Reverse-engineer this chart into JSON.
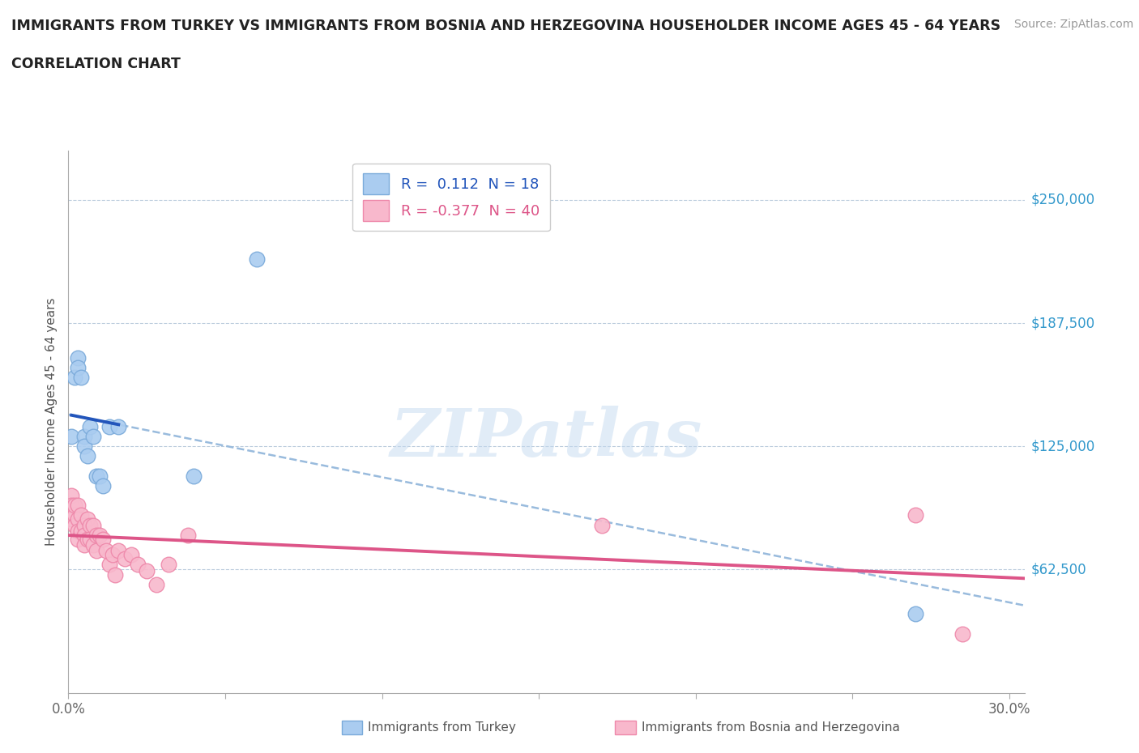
{
  "title_line1": "IMMIGRANTS FROM TURKEY VS IMMIGRANTS FROM BOSNIA AND HERZEGOVINA HOUSEHOLDER INCOME AGES 45 - 64 YEARS",
  "title_line2": "CORRELATION CHART",
  "source": "Source: ZipAtlas.com",
  "ylabel": "Householder Income Ages 45 - 64 years",
  "xlim": [
    0.0,
    0.305
  ],
  "ylim": [
    0,
    275000
  ],
  "xtick_vals": [
    0.0,
    0.05,
    0.1,
    0.15,
    0.2,
    0.25,
    0.3
  ],
  "xtick_labels": [
    "0.0%",
    "",
    "",
    "",
    "",
    "",
    "30.0%"
  ],
  "ytick_vals": [
    0,
    62500,
    125000,
    187500,
    250000
  ],
  "ytick_labels": [
    "",
    "$62,500",
    "$125,000",
    "$187,500",
    "$250,000"
  ],
  "watermark": "ZIPatlas",
  "turkey_color": "#aaccf0",
  "turkey_edge": "#7aaada",
  "bosnia_color": "#f8b8cc",
  "bosnia_edge": "#ee88aa",
  "turkey_line_color": "#2255bb",
  "bosnia_line_color": "#dd5588",
  "turkey_dash_color": "#99bbdd",
  "R_turkey": 0.112,
  "N_turkey": 18,
  "R_bosnia": -0.377,
  "N_bosnia": 40,
  "turkey_scatter_x": [
    0.001,
    0.002,
    0.003,
    0.003,
    0.004,
    0.005,
    0.005,
    0.006,
    0.007,
    0.008,
    0.009,
    0.01,
    0.011,
    0.013,
    0.016,
    0.04,
    0.06,
    0.27
  ],
  "turkey_scatter_y": [
    130000,
    160000,
    170000,
    165000,
    160000,
    130000,
    125000,
    120000,
    135000,
    130000,
    110000,
    110000,
    105000,
    135000,
    135000,
    110000,
    220000,
    40000
  ],
  "bosnia_scatter_x": [
    0.001,
    0.001,
    0.001,
    0.002,
    0.002,
    0.002,
    0.003,
    0.003,
    0.003,
    0.003,
    0.004,
    0.004,
    0.005,
    0.005,
    0.005,
    0.006,
    0.006,
    0.007,
    0.007,
    0.008,
    0.008,
    0.009,
    0.009,
    0.01,
    0.011,
    0.012,
    0.013,
    0.014,
    0.015,
    0.016,
    0.018,
    0.02,
    0.022,
    0.025,
    0.028,
    0.032,
    0.038,
    0.17,
    0.27,
    0.285
  ],
  "bosnia_scatter_y": [
    100000,
    95000,
    88000,
    90000,
    85000,
    95000,
    95000,
    88000,
    82000,
    78000,
    90000,
    82000,
    85000,
    80000,
    75000,
    88000,
    78000,
    85000,
    78000,
    85000,
    75000,
    80000,
    72000,
    80000,
    78000,
    72000,
    65000,
    70000,
    60000,
    72000,
    68000,
    70000,
    65000,
    62000,
    55000,
    65000,
    80000,
    85000,
    90000,
    30000
  ],
  "background_color": "#ffffff",
  "grid_color": "#bbccdd",
  "legend_label_turkey": "R =  0.112  N = 18",
  "legend_label_bosnia": "R = -0.377  N = 40"
}
